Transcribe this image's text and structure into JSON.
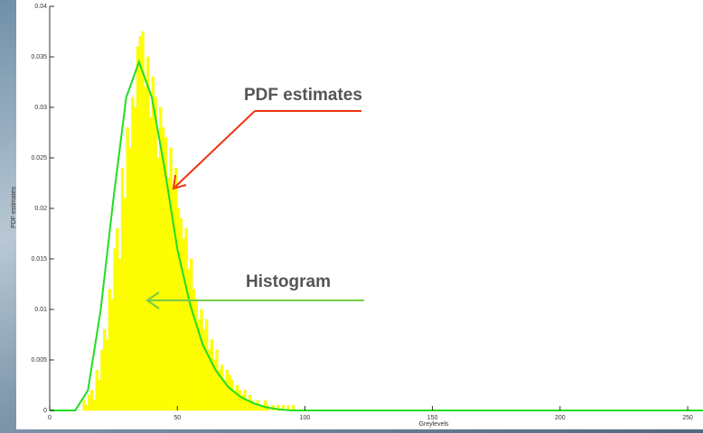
{
  "chart_data": {
    "type": "histogram",
    "xlabel": "Greylevels",
    "ylabel": "PDF estimates",
    "xlim": [
      0,
      256
    ],
    "ylim": [
      0,
      0.04
    ],
    "xticks": [
      0,
      50,
      100,
      150,
      200,
      250
    ],
    "yticks": [
      0,
      0.005,
      0.01,
      0.015,
      0.02,
      0.025,
      0.03,
      0.035,
      0.04
    ],
    "color": "#ffff00",
    "bins": [
      10,
      11,
      12,
      13,
      14,
      15,
      16,
      17,
      18,
      19,
      20,
      21,
      22,
      23,
      24,
      25,
      26,
      27,
      28,
      29,
      30,
      31,
      32,
      33,
      34,
      35,
      36,
      37,
      38,
      39,
      40,
      41,
      42,
      43,
      44,
      45,
      46,
      47,
      48,
      49,
      50,
      51,
      52,
      53,
      54,
      55,
      56,
      57,
      58,
      59,
      60,
      61,
      62,
      63,
      64,
      65,
      66,
      67,
      68,
      69,
      70,
      71,
      72,
      73,
      74,
      75,
      76,
      77,
      78,
      79,
      80,
      81,
      82,
      83,
      84,
      85,
      86,
      87,
      88,
      89,
      90,
      91,
      92,
      93,
      94,
      95,
      96,
      97,
      98,
      99,
      100
    ],
    "counts": [
      0,
      0,
      0,
      0.001,
      0.0005,
      0.0015,
      0.002,
      0.001,
      0.004,
      0.003,
      0.006,
      0.008,
      0.007,
      0.012,
      0.011,
      0.016,
      0.018,
      0.015,
      0.024,
      0.021,
      0.028,
      0.026,
      0.031,
      0.03,
      0.036,
      0.037,
      0.0375,
      0.032,
      0.035,
      0.029,
      0.033,
      0.031,
      0.025,
      0.03,
      0.028,
      0.027,
      0.023,
      0.026,
      0.022,
      0.024,
      0.02,
      0.019,
      0.017,
      0.018,
      0.014,
      0.015,
      0.012,
      0.011,
      0.009,
      0.01,
      0.008,
      0.009,
      0.006,
      0.007,
      0.005,
      0.006,
      0.004,
      0.0045,
      0.003,
      0.004,
      0.0035,
      0.003,
      0.002,
      0.0025,
      0.002,
      0.0015,
      0.002,
      0.001,
      0.0015,
      0.001,
      0.0005,
      0.001,
      0.0005,
      0.0005,
      0.001,
      0.0005,
      0,
      0.0005,
      0,
      0.0005,
      0,
      0.0005,
      0,
      0.0005,
      0,
      0.0005,
      0,
      0,
      0,
      0
    ],
    "curve": {
      "color": "#22dd22",
      "x": [
        0,
        10,
        15,
        20,
        25,
        30,
        35,
        40,
        45,
        50,
        55,
        60,
        65,
        70,
        75,
        80,
        85,
        90,
        95,
        100,
        150,
        200,
        256
      ],
      "values": [
        0,
        0,
        0.002,
        0.01,
        0.021,
        0.031,
        0.0345,
        0.031,
        0.024,
        0.016,
        0.0105,
        0.0065,
        0.004,
        0.0023,
        0.0013,
        0.0007,
        0.0003,
        0.0001,
        0,
        0,
        0,
        0,
        0
      ]
    },
    "annotations": [
      "PDF estimates",
      "Histogram"
    ]
  }
}
